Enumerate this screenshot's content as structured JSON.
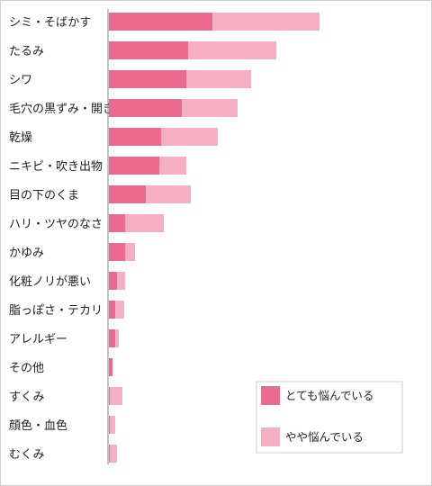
{
  "chart_data": {
    "type": "bar",
    "orientation": "horizontal",
    "stacked": true,
    "categories": [
      "シミ・そばかす",
      "たるみ",
      "シワ",
      "毛穴の黒ずみ・開き",
      "乾燥",
      "ニキビ・吹き出物",
      "目の下のくま",
      "ハリ・ツヤのなさ",
      "かゆみ",
      "化粧ノリが悪い",
      "脂っぽさ・テカリ",
      "アレルギー",
      "その他",
      "すくみ",
      "顔色・血色",
      "むくみ"
    ],
    "series": [
      {
        "name": "とても悩んでいる",
        "color": "#ea6b8f",
        "values": [
          115,
          88,
          86,
          81,
          58,
          56,
          41,
          18,
          18,
          9,
          7,
          7,
          4,
          1,
          1,
          1
        ]
      },
      {
        "name": "やや悩んでいる",
        "color": "#f4b0c2",
        "values": [
          119,
          98,
          72,
          62,
          63,
          30,
          50,
          43,
          11,
          9,
          10,
          4,
          0,
          14,
          6,
          8
        ]
      }
    ],
    "xlim": [
      0,
      360
    ],
    "grid": false,
    "legend_position": "bottom-right"
  }
}
